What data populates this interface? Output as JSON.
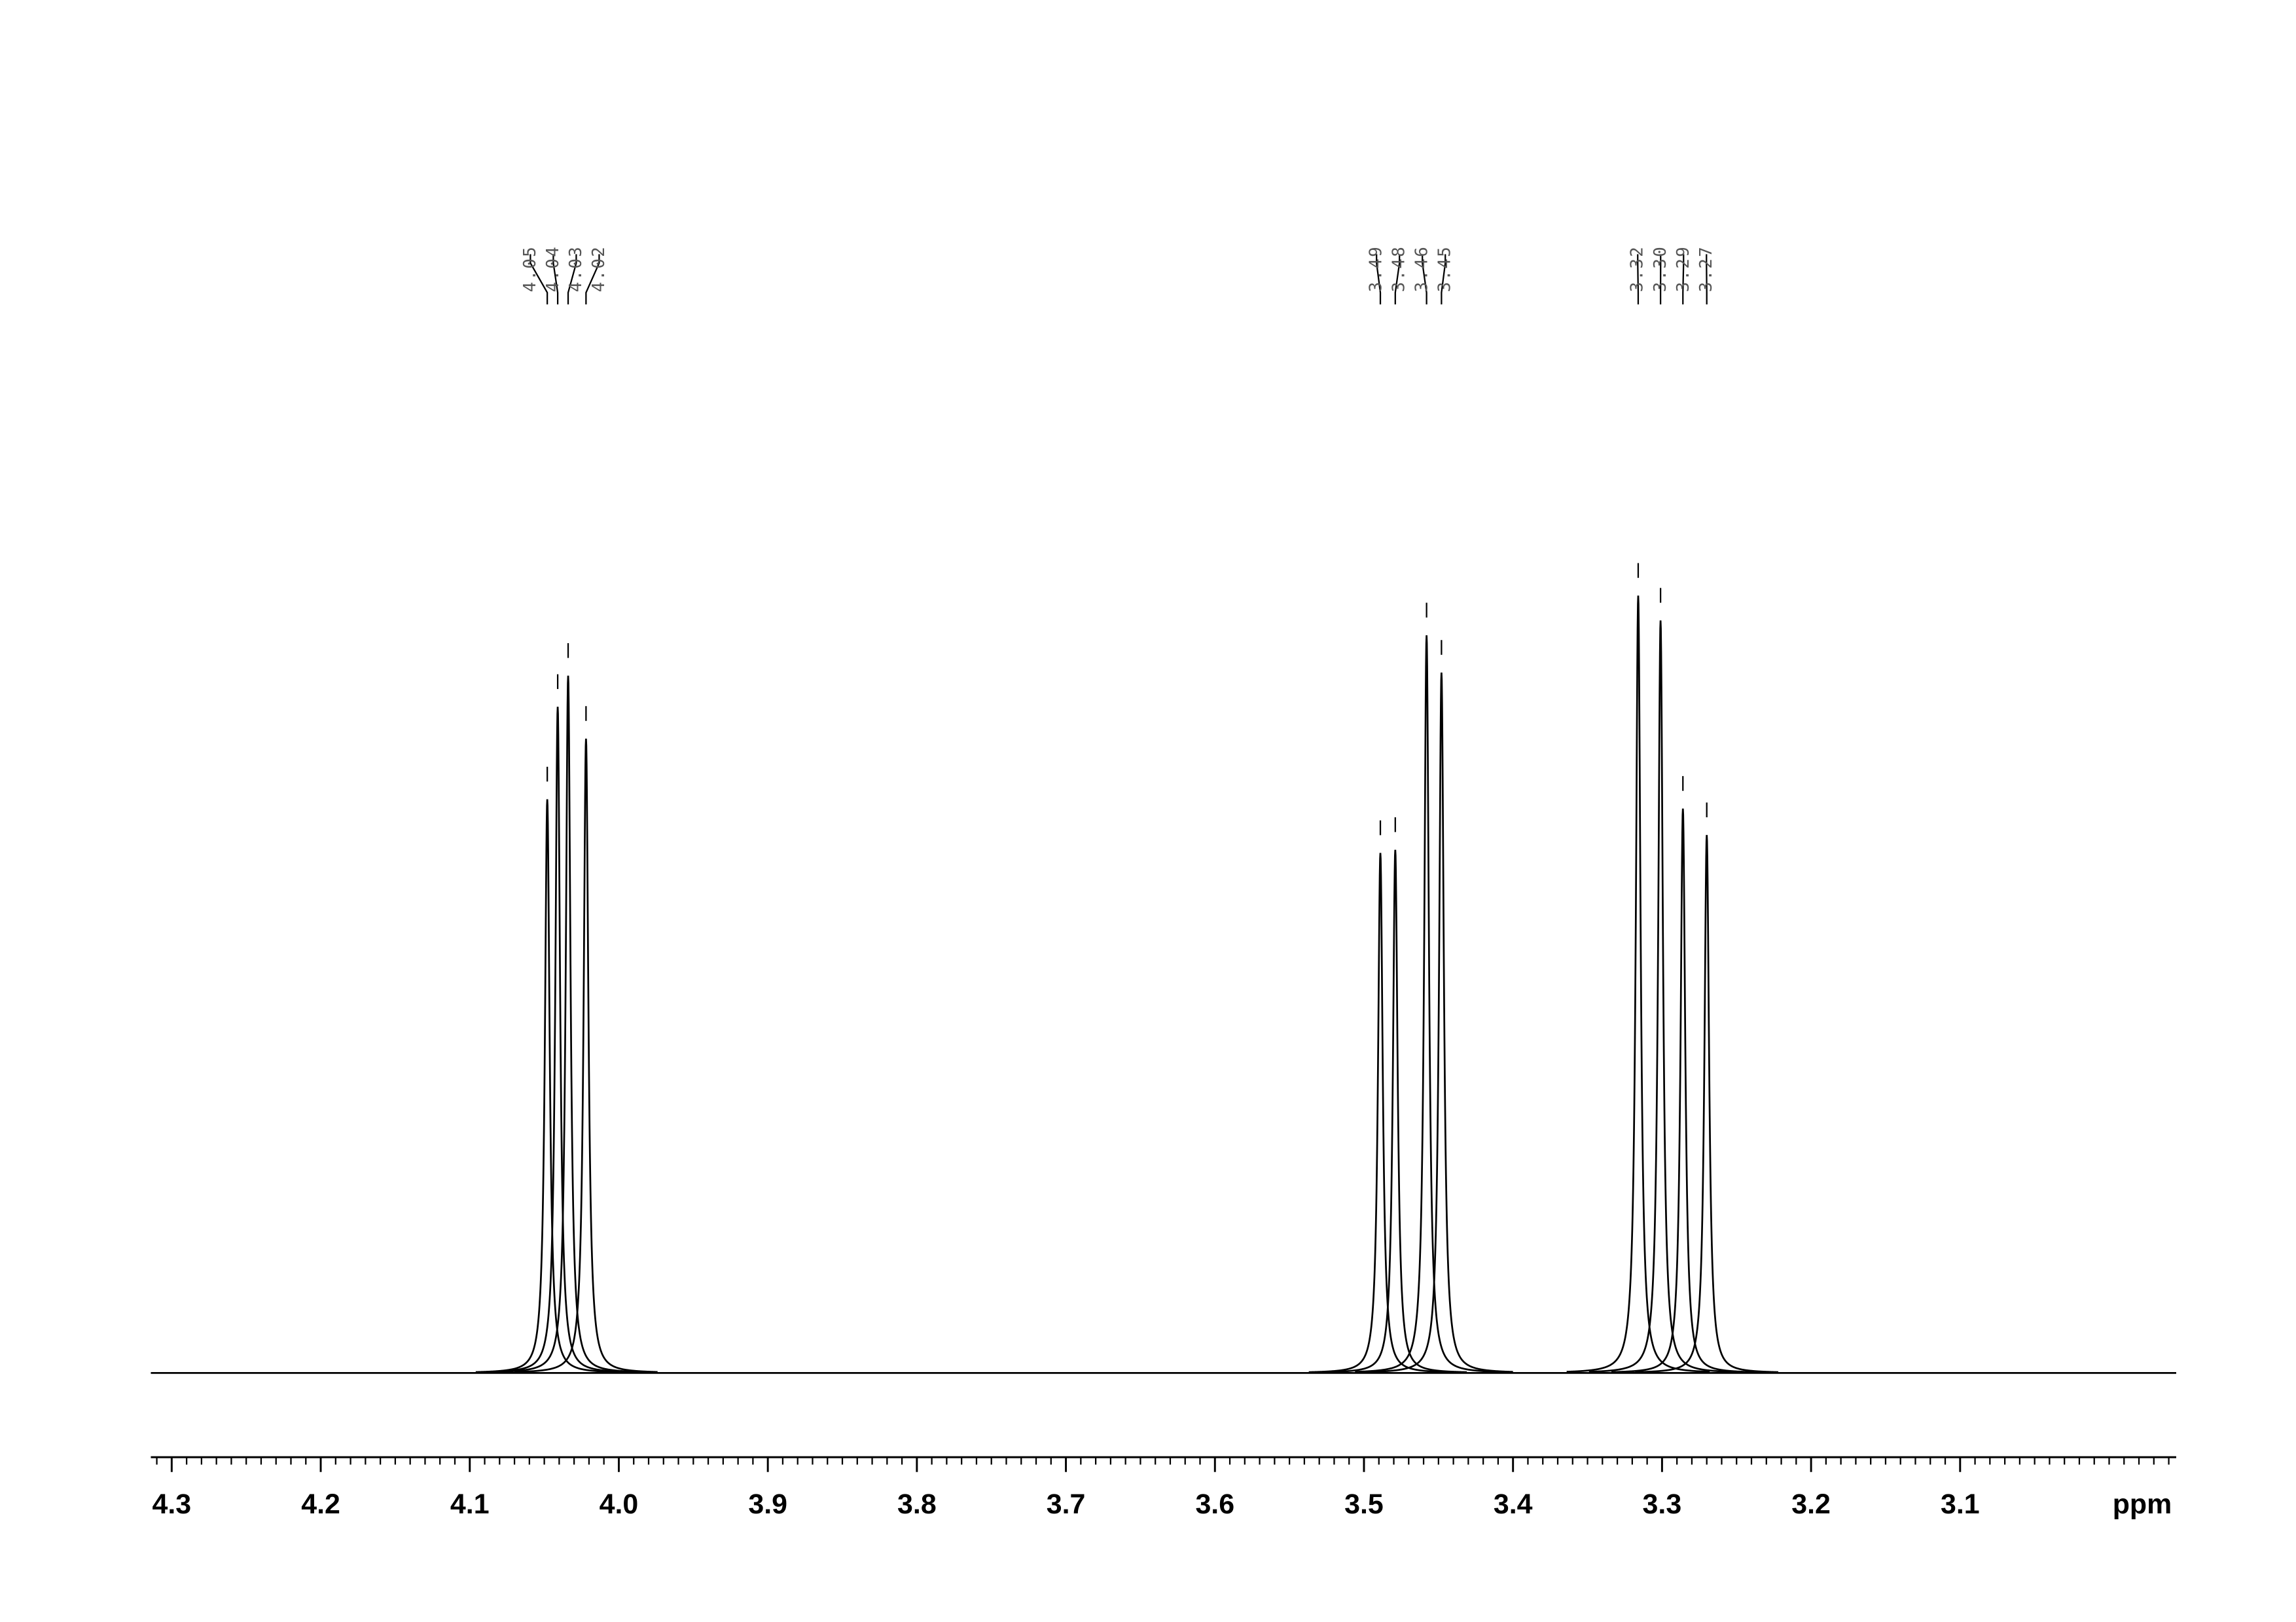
{
  "chart_data": {
    "type": "nmr",
    "x_label": "ppm",
    "xlim": [
      4.314,
      2.955
    ],
    "xticks": [
      4.3,
      4.2,
      4.1,
      {
        "value": 4.0,
        "label": "4.0"
      },
      3.9,
      3.8,
      3.7,
      3.6,
      3.5,
      3.4,
      3.3,
      3.2,
      3.1
    ],
    "minor_tick_step": 0.01,
    "ylim": [
      0,
      100
    ],
    "color": "#000000",
    "x": [
      4.048,
      4.041,
      4.034,
      4.022,
      3.489,
      3.479,
      3.458,
      3.448,
      3.316,
      3.301,
      3.286,
      3.27
    ],
    "x_labels": [
      "4.05",
      "4.04",
      "4.03",
      "4.02",
      "3.49",
      "3.48",
      "3.46",
      "3.45",
      "3.32",
      "3.30",
      "3.29",
      "3.27"
    ],
    "values": [
      73.8,
      85.7,
      89.7,
      81.6,
      66.9,
      67.3,
      94.9,
      90.1,
      100,
      96.8,
      72.6,
      69.2
    ]
  }
}
